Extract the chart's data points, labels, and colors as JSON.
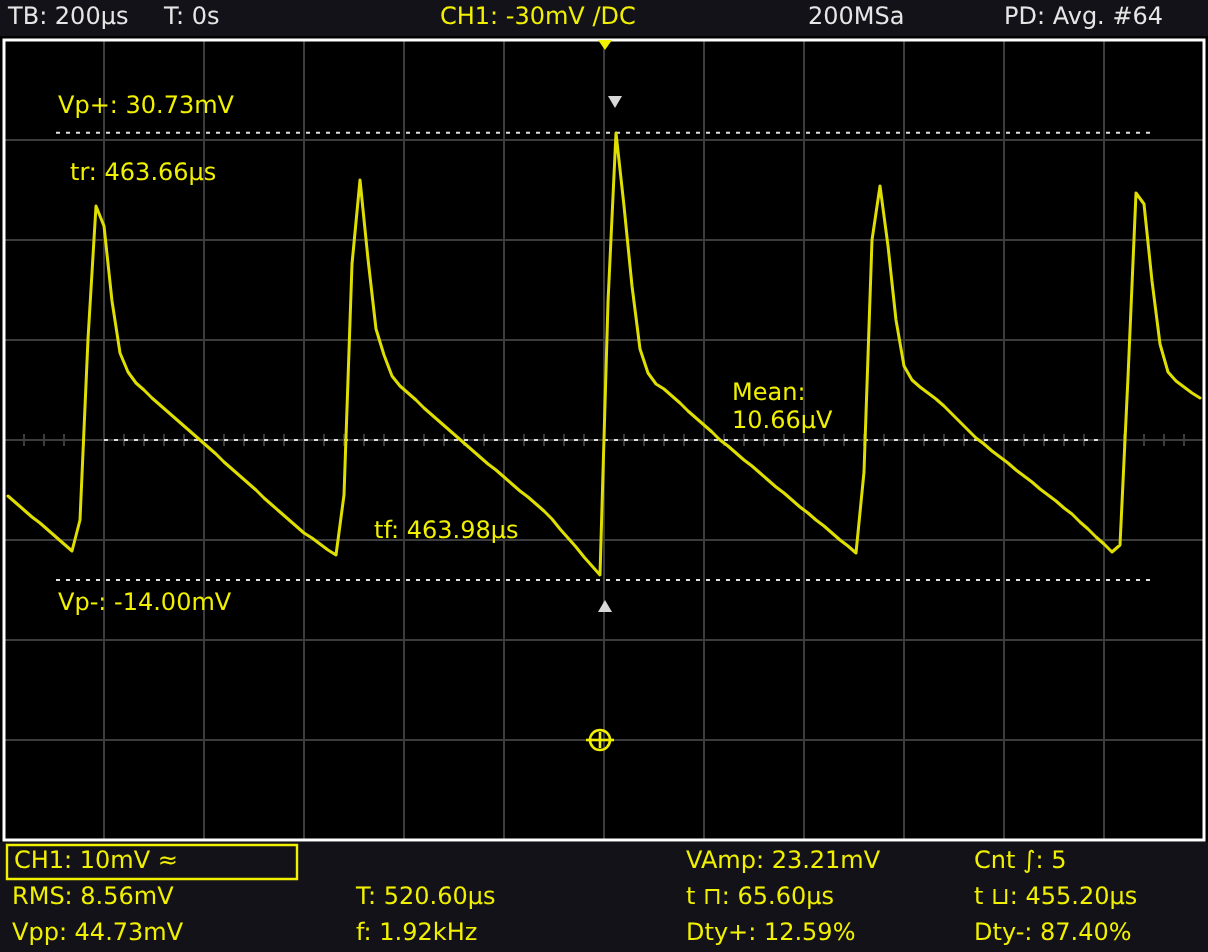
{
  "chart_data": {
    "type": "line",
    "categories": [
      null,
      null,
      null,
      null,
      null,
      null,
      null,
      null,
      null,
      null,
      null,
      null,
      null,
      null,
      null,
      null,
      null,
      null,
      null,
      null,
      null,
      null,
      null,
      null,
      null,
      null,
      null,
      null,
      null,
      null,
      null,
      null,
      null,
      null,
      null,
      null,
      null,
      null,
      null,
      null,
      null,
      null,
      null,
      null,
      null,
      null,
      null,
      null,
      null,
      null,
      null,
      null,
      null,
      null,
      null,
      null,
      null,
      null,
      null,
      null,
      null,
      null,
      null,
      null,
      null,
      null,
      null,
      null,
      null,
      null,
      null,
      null,
      null,
      null,
      null,
      null,
      null,
      null,
      null,
      null,
      null,
      null,
      null,
      null,
      null,
      null,
      null,
      null,
      null,
      null,
      null,
      null,
      null,
      null,
      null,
      null,
      null,
      null,
      null,
      null,
      null,
      null,
      null,
      null,
      null,
      null,
      null,
      null,
      null,
      null,
      null,
      null,
      null,
      null,
      null,
      null,
      null,
      null,
      null,
      null,
      null,
      null,
      null,
      null,
      null,
      null,
      null,
      null,
      null,
      null,
      null,
      null,
      null,
      null,
      null,
      null,
      null,
      null,
      null,
      null,
      null,
      null,
      null,
      null,
      null,
      null,
      null,
      null,
      null,
      null
    ],
    "values": [
      -5.6,
      -6.3,
      -7.0,
      -7.7,
      -8.3,
      -9.0,
      -9.7,
      -10.4,
      -11.1,
      -8.0,
      10.1,
      23.4,
      21.4,
      13.9,
      8.7,
      6.8,
      5.7,
      5.0,
      4.2,
      3.5,
      2.8,
      2.1,
      1.4,
      0.7,
      0.0,
      -0.7,
      -1.4,
      -2.2,
      -2.9,
      -3.6,
      -4.3,
      -5.0,
      -5.8,
      -6.5,
      -7.2,
      -7.9,
      -8.6,
      -9.3,
      -9.8,
      -10.4,
      -11.0,
      -11.5,
      -5.5,
      17.6,
      26.0,
      18.1,
      11.1,
      8.5,
      6.4,
      5.4,
      4.7,
      4.0,
      3.2,
      2.5,
      1.8,
      1.1,
      0.4,
      -0.3,
      -1.0,
      -1.7,
      -2.4,
      -3.0,
      -3.7,
      -4.4,
      -5.1,
      -5.7,
      -6.4,
      -7.1,
      -7.9,
      -8.9,
      -9.8,
      -10.7,
      -11.7,
      -12.6,
      -13.5,
      13.8,
      30.7,
      23.4,
      15.4,
      9.1,
      6.7,
      5.6,
      5.1,
      4.4,
      3.7,
      2.9,
      2.2,
      1.5,
      0.8,
      0.0,
      -0.6,
      -1.3,
      -2.0,
      -2.6,
      -3.3,
      -4.0,
      -4.7,
      -5.3,
      -6.0,
      -6.7,
      -7.3,
      -8.0,
      -8.6,
      -9.3,
      -10.0,
      -10.6,
      -11.3,
      -3.2,
      20.0,
      25.4,
      19.4,
      12.0,
      7.4,
      6.0,
      5.3,
      4.7,
      4.1,
      3.4,
      2.6,
      1.8,
      1.0,
      0.2,
      -0.4,
      -1.1,
      -1.7,
      -2.3,
      -3.0,
      -3.6,
      -4.2,
      -4.9,
      -5.5,
      -6.1,
      -6.8,
      -7.4,
      -8.2,
      -8.9,
      -9.7,
      -10.4,
      -11.2,
      -10.5,
      6.3,
      24.7,
      23.6,
      15.9,
      9.6,
      6.8,
      5.9,
      5.3,
      4.7,
      4.2
    ],
    "color": "#dede00",
    "line_style": "solid",
    "ylim": [
      -40,
      40
    ],
    "yticks": [
      {
        "value": -40,
        "label": null
      },
      {
        "value": -30,
        "label": null
      },
      {
        "value": -20,
        "label": null
      },
      {
        "value": -10,
        "label": null
      },
      {
        "value": 0,
        "label": null
      },
      {
        "value": 10,
        "label": null
      },
      {
        "value": 20,
        "label": null
      },
      {
        "value": 30,
        "label": null
      },
      {
        "value": 40,
        "label": null
      }
    ],
    "grid": true,
    "tick_labels": false,
    "ref_lines": [
      {
        "axis": "y",
        "value": 30.73,
        "label": "Vp+: 30.73mV",
        "color": "#e0e0e0",
        "line_style": "dotted"
      },
      {
        "axis": "y",
        "value": -14.0,
        "label": "Vp-: -14.00mV",
        "color": "#e0e0e0",
        "line_style": "dotted"
      },
      {
        "axis": "y",
        "value": 0.01066,
        "label": "Mean: 10.66µV",
        "color": "#e0e0e0",
        "line_style": "dotted"
      }
    ],
    "annotations": [
      "TB: 200µs",
      "T: 0s",
      "CH1: -30mV /DC",
      "200MSa",
      "PD: Avg. #64",
      "CH1: 10mV ≈",
      "RMS: 8.56mV",
      "Vpp: 44.73mV",
      "T: 520.60µs",
      "f: 1.92kHz",
      "VAmp: 23.21mV",
      "t ⊓: 65.60µs",
      "Dty+: 12.59%",
      "Cnt ∫: 5",
      "t ⊔: 455.20µs",
      "Dty-: 87.40%",
      "tr: 463.66µs",
      "tf: 463.98µs"
    ]
  }
}
